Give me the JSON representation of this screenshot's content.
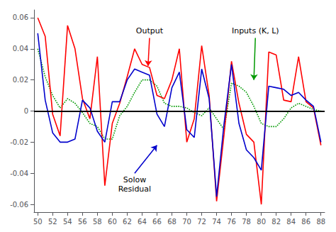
{
  "chart_data": {
    "type": "line",
    "x": [
      50,
      51,
      52,
      53,
      54,
      55,
      56,
      57,
      58,
      59,
      60,
      61,
      62,
      63,
      64,
      65,
      66,
      67,
      68,
      69,
      70,
      71,
      72,
      73,
      74,
      75,
      76,
      77,
      78,
      79,
      80,
      81,
      82,
      83,
      84,
      85,
      86,
      87,
      88
    ],
    "series": [
      {
        "color": "#009900",
        "line_style": "dotted",
        "values": [
          0.04,
          0.022,
          0.01,
          0.002,
          0.008,
          0.005,
          -0.001,
          -0.008,
          -0.01,
          -0.018,
          -0.018,
          -0.003,
          0.003,
          0.012,
          0.02,
          0.02,
          0.016,
          0.005,
          0.003,
          0.003,
          0.002,
          -0.001,
          -0.003,
          0.002,
          -0.005,
          -0.012,
          0.018,
          0.016,
          0.012,
          0.003,
          -0.008,
          -0.01,
          -0.01,
          -0.005,
          0.002,
          0.005,
          0.003,
          0.001,
          0.0
        ]
      },
      {
        "color": "#FF0000",
        "line_style": "solid",
        "values": [
          0.06,
          0.048,
          -0.002,
          -0.016,
          0.055,
          0.04,
          0.008,
          -0.005,
          0.035,
          -0.048,
          -0.008,
          0.005,
          0.022,
          0.04,
          0.03,
          0.028,
          0.01,
          0.008,
          0.02,
          0.04,
          -0.02,
          -0.005,
          0.042,
          0.01,
          -0.058,
          -0.015,
          0.032,
          0.005,
          -0.015,
          -0.02,
          -0.06,
          0.038,
          0.036,
          0.007,
          0.006,
          0.035,
          0.006,
          0.002,
          -0.022
        ]
      },
      {
        "color": "#0000CC",
        "line_style": "solid",
        "values": [
          0.05,
          0.007,
          -0.014,
          -0.02,
          -0.02,
          -0.018,
          0.007,
          0.002,
          -0.013,
          -0.02,
          0.006,
          0.006,
          0.02,
          0.027,
          0.025,
          0.023,
          -0.002,
          -0.01,
          0.015,
          0.025,
          -0.012,
          -0.017,
          0.027,
          0.008,
          -0.055,
          -0.008,
          0.03,
          -0.008,
          -0.025,
          -0.03,
          -0.038,
          0.016,
          0.015,
          0.014,
          0.01,
          0.012,
          0.007,
          0.003,
          -0.02
        ]
      }
    ],
    "xlim": [
      49.5,
      88.5
    ],
    "xticks": [
      50,
      52,
      54,
      56,
      58,
      60,
      62,
      64,
      66,
      68,
      70,
      72,
      74,
      76,
      78,
      80,
      82,
      84,
      86,
      88
    ],
    "ylim": [
      -0.065,
      0.065
    ],
    "yticks": [
      -0.06,
      -0.04,
      -0.02,
      0,
      0.02,
      0.04,
      0.06
    ],
    "grid": false,
    "hlines": [
      0
    ],
    "annotations": [
      {
        "text": "Output",
        "xy": [
          64.8,
          0.029
        ],
        "xytext": [
          65.0,
          0.047
        ],
        "color": "#FF0000"
      },
      {
        "text": "Inputs (K, L)",
        "xy": [
          79.0,
          0.02
        ],
        "xytext": [
          79.2,
          0.047
        ],
        "color": "#009900"
      },
      {
        "text": "Solow\nResidual",
        "xy": [
          66.0,
          -0.022
        ],
        "xytext": [
          63.0,
          -0.04
        ],
        "color": "#0000CC"
      }
    ]
  }
}
